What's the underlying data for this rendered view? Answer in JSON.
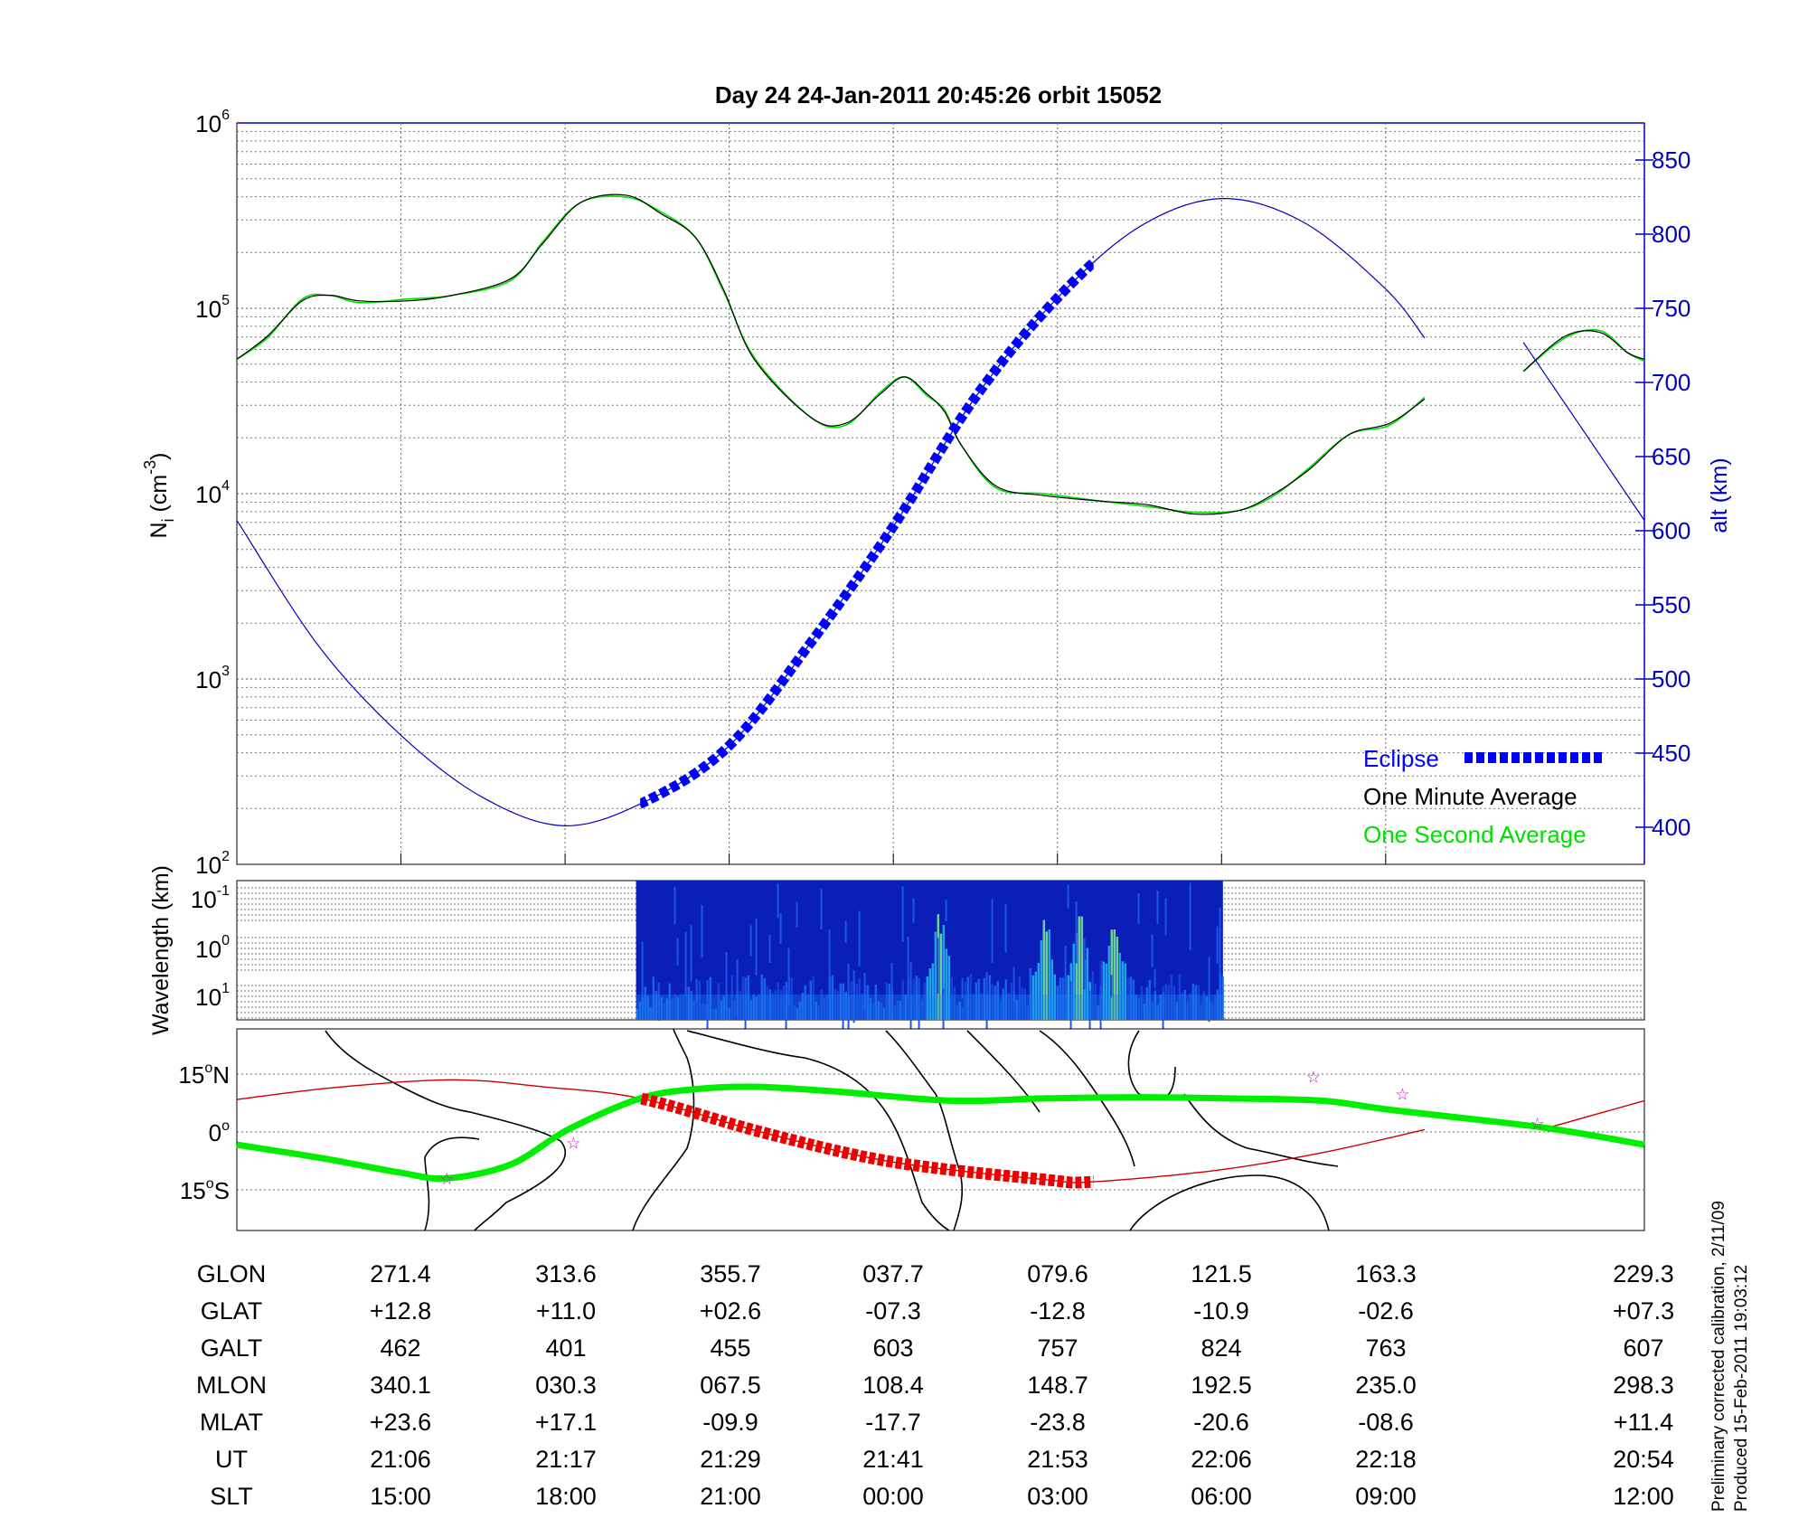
{
  "chart_data": {
    "type": "line",
    "title": "Day 24  24-Jan-2011 20:45:26   orbit 15052",
    "x_units": "minutes after left edge of plot (approx. 20:54 UT)",
    "x_range": [
      0,
      101.2
    ],
    "x_ticks_minutes": [
      11.8,
      23.6,
      35.4,
      47.2,
      59.0,
      70.8,
      82.6
    ],
    "density_panel": {
      "ylabel": {
        "main": "N",
        "sub": "i",
        "unit_pre": " (cm",
        "unit_exp": "-3",
        "unit_post": ")"
      },
      "ylog_range": [
        2,
        6
      ],
      "y_ticks": [
        {
          "base": "10",
          "exp": "6",
          "v": 6
        },
        {
          "base": "10",
          "exp": "5",
          "v": 5
        },
        {
          "base": "10",
          "exp": "4",
          "v": 4
        },
        {
          "base": "10",
          "exp": "3",
          "v": 3
        },
        {
          "base": "10",
          "exp": "2",
          "v": 2
        }
      ],
      "y2label": "alt (km)",
      "y2_range": [
        372,
        872
      ],
      "y2_ticks": [
        400,
        450,
        500,
        550,
        600,
        650,
        700,
        750,
        800,
        850
      ],
      "series": [
        {
          "name": "One Minute Average",
          "color": "#000000",
          "log10_density_segments": [
            [
              [
                0,
                4.725
              ],
              [
                2.2,
                4.85
              ],
              [
                4.7,
                5.04
              ],
              [
                6.7,
                5.07
              ],
              [
                8.8,
                5.04
              ],
              [
                12.2,
                5.04
              ],
              [
                15.5,
                5.07
              ],
              [
                19.7,
                5.16
              ],
              [
                22,
                5.35
              ],
              [
                24.7,
                5.57
              ],
              [
                28,
                5.61
              ],
              [
                30.5,
                5.51
              ],
              [
                33,
                5.38
              ],
              [
                35,
                5.1
              ],
              [
                37.2,
                4.725
              ],
              [
                41.3,
                4.41
              ],
              [
                43.8,
                4.38
              ],
              [
                46.3,
                4.54
              ],
              [
                48,
                4.63
              ],
              [
                49.6,
                4.54
              ],
              [
                50.9,
                4.44
              ],
              [
                52.1,
                4.26
              ],
              [
                54.6,
                4.04
              ],
              [
                58,
                3.99
              ],
              [
                62.1,
                3.96
              ],
              [
                65.5,
                3.94
              ],
              [
                68.8,
                3.89
              ],
              [
                72.1,
                3.91
              ],
              [
                74.6,
                4.0
              ],
              [
                77.1,
                4.13
              ],
              [
                80,
                4.32
              ],
              [
                82.9,
                4.38
              ],
              [
                85.4,
                4.51
              ]
            ],
            [
              [
                92.5,
                4.66
              ],
              [
                95.5,
                4.85
              ],
              [
                98,
                4.87
              ],
              [
                100,
                4.76
              ],
              [
                101.2,
                4.725
              ]
            ]
          ]
        },
        {
          "name": "One Second Average",
          "color": "#00e000"
        },
        {
          "name": "Altitude",
          "color": "#0000c0",
          "alt_km_segments": [
            [
              [
                0,
                607
              ],
              [
                5.9,
                522
              ],
              [
                11.8,
                462
              ],
              [
                17.7,
                420
              ],
              [
                23.6,
                401
              ],
              [
                29.5,
                418
              ],
              [
                35.4,
                455
              ],
              [
                41.3,
                525
              ],
              [
                47.2,
                603
              ],
              [
                53.1,
                690
              ],
              [
                59,
                757
              ],
              [
                64.9,
                805
              ],
              [
                70.8,
                824
              ],
              [
                76.7,
                808
              ],
              [
                82.6,
                763
              ],
              [
                85.4,
                730
              ]
            ],
            [
              [
                92.5,
                727
              ],
              [
                101.2,
                607
              ]
            ]
          ]
        },
        {
          "name": "Eclipse",
          "color": "#0000ff",
          "x_range": [
            29,
            61.6
          ]
        }
      ],
      "legend": [
        "Eclipse",
        "One Minute Average",
        "One Second Average"
      ],
      "legend_position": "bottom-right"
    },
    "spectrogram_panel": {
      "ylabel": "Wavelength (km)",
      "y_ticks": [
        {
          "base": "10",
          "exp": "-1"
        },
        {
          "base": "10",
          "exp": "0"
        },
        {
          "base": "10",
          "exp": "1"
        }
      ],
      "data_x_range": [
        28.7,
        70.9
      ],
      "enhancement_x": [
        50.4,
        58,
        60.5,
        63
      ]
    },
    "map_panel": {
      "y_ticks": [
        {
          "label": "15",
          "deg": "o",
          "hemi": "N",
          "lat": 15
        },
        {
          "label": "0",
          "deg": "o",
          "hemi": "",
          "lat": 0
        },
        {
          "label": "15",
          "deg": "o",
          "hemi": "S",
          "lat": -15
        }
      ],
      "magnetic_track": [
        [
          0,
          -3.3
        ],
        [
          6.3,
          -6.9
        ],
        [
          11.7,
          -10.5
        ],
        [
          15.1,
          -12
        ],
        [
          19.7,
          -8.4
        ],
        [
          23.8,
          0.6
        ],
        [
          29,
          8.7
        ],
        [
          33,
          11.1
        ],
        [
          37.2,
          11.7
        ],
        [
          43,
          10.5
        ],
        [
          51.3,
          8.1
        ],
        [
          58,
          8.7
        ],
        [
          64.6,
          9
        ],
        [
          71.3,
          8.7
        ],
        [
          78,
          8.1
        ],
        [
          83,
          5.7
        ],
        [
          93.8,
          1.2
        ],
        [
          101.2,
          -3.3
        ]
      ],
      "geographic_track_segments": [
        [
          [
            0,
            8.4
          ],
          [
            7,
            11.5
          ],
          [
            15.5,
            13.5
          ],
          [
            22,
            11.7
          ],
          [
            29,
            8.7
          ],
          [
            38,
            -0.3
          ],
          [
            47.2,
            -7.8
          ],
          [
            58,
            -12.3
          ],
          [
            61.6,
            -12.9
          ],
          [
            70.5,
            -9.9
          ],
          [
            78,
            -5.4
          ],
          [
            85.4,
            0.6
          ]
        ],
        [
          [
            93.8,
            0.6
          ],
          [
            101.2,
            8.1
          ]
        ]
      ],
      "eclipse_x_range": [
        29,
        61.6
      ],
      "stars": [
        [
          15.1,
          -12
        ],
        [
          24.2,
          -2.7
        ],
        [
          77.4,
          14.4
        ],
        [
          83.8,
          9.9
        ],
        [
          93.5,
          2.4
        ]
      ],
      "colors": {
        "magnetic": "#00ee00",
        "geographic": "#cc0000",
        "eclipse": "#ee0000",
        "stars": "#dd00dd"
      }
    },
    "table": {
      "rows": [
        {
          "label": "GLON",
          "values": [
            "271.4",
            "313.6",
            "355.7",
            "037.7",
            "079.6",
            "121.5",
            "163.3",
            "229.3"
          ]
        },
        {
          "label": "GLAT",
          "values": [
            "+12.8",
            "+11.0",
            "+02.6",
            "-07.3",
            "-12.8",
            "-10.9",
            "-02.6",
            "+07.3"
          ]
        },
        {
          "label": "GALT",
          "values": [
            "462",
            "401",
            "455",
            "603",
            "757",
            "824",
            "763",
            "607"
          ]
        },
        {
          "label": "MLON",
          "values": [
            "340.1",
            "030.3",
            "067.5",
            "108.4",
            "148.7",
            "192.5",
            "235.0",
            "298.3"
          ]
        },
        {
          "label": "MLAT",
          "values": [
            "+23.6",
            "+17.1",
            "-09.9",
            "-17.7",
            "-23.8",
            "-20.6",
            "-08.6",
            "+11.4"
          ]
        },
        {
          "label": "UT",
          "values": [
            "21:06",
            "21:17",
            "21:29",
            "21:41",
            "21:53",
            "22:06",
            "22:18",
            "20:54"
          ]
        },
        {
          "label": "SLT",
          "values": [
            "15:00",
            "18:00",
            "21:00",
            "00:00",
            "03:00",
            "06:00",
            "09:00",
            "12:00"
          ]
        }
      ]
    },
    "footnote": [
      "Preliminary corrected calibration, 2/11/09",
      "Produced 15-Feb-2011 19:03:12"
    ]
  }
}
